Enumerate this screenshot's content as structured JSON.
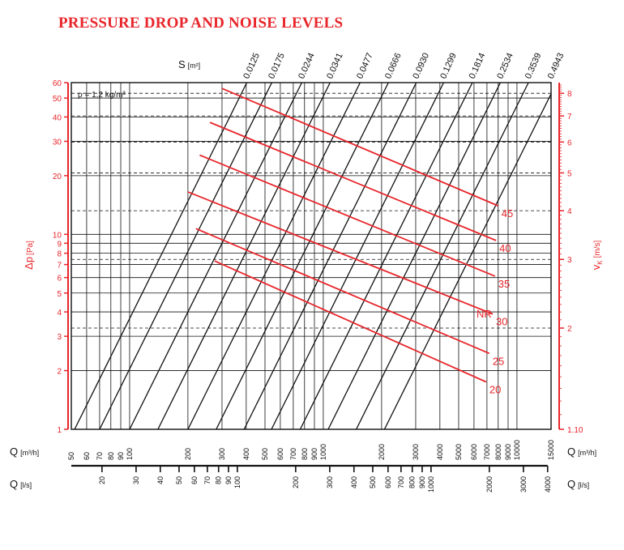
{
  "title": "PRESSURE DROP AND NOISE LEVELS",
  "chart_data": {
    "type": "line",
    "title": "PRESSURE DROP AND NOISE LEVELS",
    "colors": {
      "title": "#e8262b",
      "pressure_axis": "#e8262b",
      "velocity_axis": "#e8262b",
      "nr_lines": "#e8262b",
      "grid": "#111111",
      "s_lines": "#111111"
    },
    "y_axis_left": {
      "label": "Δp",
      "unit": "[Pa]",
      "scale": "log",
      "range": [
        1,
        60
      ],
      "ticks": [
        1,
        2,
        3,
        4,
        5,
        6,
        7,
        8,
        9,
        10,
        20,
        30,
        40,
        50,
        60
      ],
      "tick_labels": [
        "1",
        "2",
        "3",
        "4",
        "5",
        "6",
        "7",
        "8",
        "9",
        "10",
        "20",
        "30",
        "40",
        "50",
        "60"
      ]
    },
    "y_axis_right": {
      "label": "v",
      "subscript": "K",
      "unit": "[m/s]",
      "scale": "log",
      "ticks": [
        1.1,
        2,
        3,
        4,
        5,
        6,
        7,
        8
      ],
      "tick_labels": [
        "1.10",
        "2",
        "3",
        "4",
        "5",
        "6",
        "7",
        "8"
      ]
    },
    "x_axis_m3h": {
      "label": "Q",
      "unit": "[m³/h]",
      "scale": "log",
      "range": [
        50,
        15000
      ],
      "ticks": [
        50,
        60,
        70,
        80,
        90,
        100,
        200,
        300,
        400,
        500,
        600,
        700,
        800,
        900,
        1000,
        2000,
        3000,
        4000,
        5000,
        6000,
        7000,
        8000,
        9000,
        10000,
        15000
      ],
      "tick_labels": [
        "50",
        "60",
        "70",
        "80",
        "90",
        "100",
        "200",
        "300",
        "400",
        "500",
        "600",
        "700",
        "800",
        "900",
        "1000",
        "2000",
        "3000",
        "4000",
        "5000",
        "6000",
        "7000",
        "8000",
        "9000",
        "10000",
        "15000"
      ]
    },
    "x_axis_ls": {
      "label": "Q",
      "unit": "[l/s]",
      "ticks": [
        20,
        30,
        40,
        50,
        60,
        70,
        80,
        90,
        100,
        200,
        300,
        400,
        500,
        600,
        700,
        800,
        900,
        1000,
        2000,
        3000,
        4000
      ],
      "tick_labels": [
        "20",
        "30",
        "40",
        "50",
        "60",
        "70",
        "80",
        "90",
        "100",
        "200",
        "300",
        "400",
        "500",
        "600",
        "700",
        "800",
        "900",
        "1000",
        "2000",
        "3000",
        "4000"
      ]
    },
    "s_lines": {
      "label": "S",
      "unit": "[m²]",
      "values": [
        0.0125,
        0.0175,
        0.0244,
        0.0341,
        0.0477,
        0.0666,
        0.093,
        0.1299,
        0.1814,
        0.2534,
        0.3539,
        0.4943
      ],
      "labels": [
        "0.0125",
        "0.0175",
        "0.0244",
        "0.0341",
        "0.0477",
        "0.0666",
        "0.0930",
        "0.1299",
        "0.1814",
        "0.2534",
        "0.3539",
        "0.4943"
      ],
      "q_at_dp1_m3h": [
        52,
        70,
        100,
        140,
        200,
        280,
        390,
        540,
        760,
        1060,
        1480,
        2070
      ]
    },
    "density_note": "ρ = 1,2 kg/m³",
    "nr_label": "NR",
    "nr_curves": [
      {
        "name": "20",
        "label": "20",
        "points": [
          {
            "q": 275,
            "dp": 7.3
          },
          {
            "q": 6930,
            "dp": 1.75
          }
        ]
      },
      {
        "name": "25",
        "label": "25",
        "points": [
          {
            "q": 220,
            "dp": 10.7
          },
          {
            "q": 7200,
            "dp": 2.45
          }
        ]
      },
      {
        "name": "30",
        "label": "30",
        "points": [
          {
            "q": 200,
            "dp": 16.5
          },
          {
            "q": 7500,
            "dp": 3.9
          }
        ]
      },
      {
        "name": "35",
        "label": "35",
        "points": [
          {
            "q": 230,
            "dp": 25.5
          },
          {
            "q": 7700,
            "dp": 6.1
          }
        ]
      },
      {
        "name": "40",
        "label": "40",
        "points": [
          {
            "q": 260,
            "dp": 37.5
          },
          {
            "q": 7800,
            "dp": 9.3
          }
        ]
      },
      {
        "name": "45",
        "label": "45",
        "points": [
          {
            "q": 300,
            "dp": 56.0
          },
          {
            "q": 8000,
            "dp": 14.0
          }
        ]
      }
    ]
  }
}
